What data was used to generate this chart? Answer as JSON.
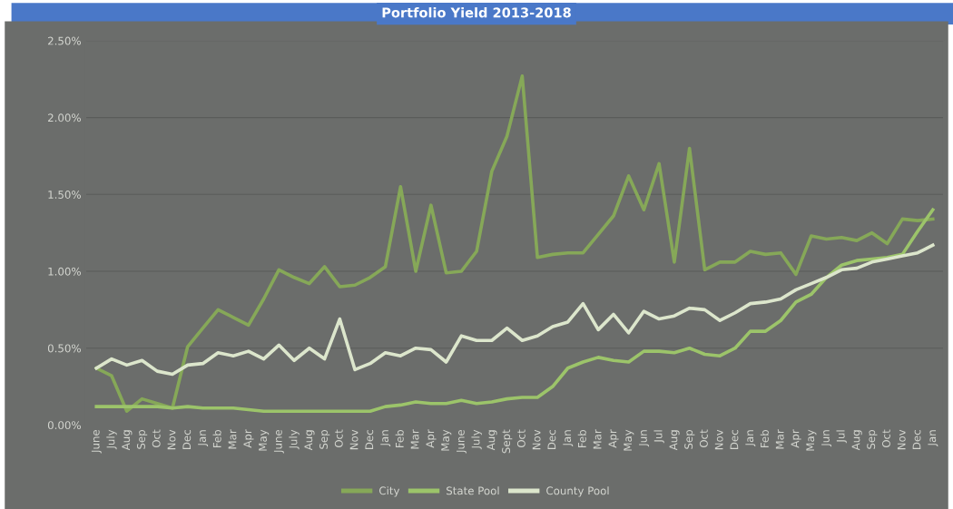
{
  "chart_data": {
    "type": "line",
    "title": "Portfolio Yield 2013-2018",
    "categories": [
      "June",
      "July",
      "Aug",
      "Sep",
      "Oct",
      "Nov",
      "Dec",
      "Jan",
      "Feb",
      "Mar",
      "Apr",
      "May",
      "June",
      "July",
      "Aug",
      "Sep",
      "Oct",
      "Nov",
      "Dec",
      "Jan",
      "Feb",
      "Mar",
      "Apr",
      "May",
      "June",
      "July",
      "Aug",
      "Sept",
      "Oct",
      "Nov",
      "Dec",
      "Jan",
      "Feb",
      "Mar",
      "Apr",
      "May",
      "Jun",
      "Jul",
      "Aug",
      "Sep",
      "Oct",
      "Nov",
      "Dec",
      "Jan",
      "Feb",
      "Mar",
      "Apr",
      "May",
      "Jun",
      "Jul",
      "Aug",
      "Sep",
      "Oct",
      "Nov",
      "Dec",
      "Jan"
    ],
    "series": [
      {
        "name": "City",
        "color": "#86a858",
        "values": [
          0.37,
          0.32,
          0.09,
          0.17,
          0.14,
          0.11,
          0.51,
          0.63,
          0.75,
          0.7,
          0.65,
          0.82,
          1.01,
          0.96,
          0.92,
          1.03,
          0.9,
          0.91,
          0.96,
          1.03,
          1.55,
          1.0,
          1.43,
          0.99,
          1.0,
          1.13,
          1.65,
          1.88,
          2.27,
          1.09,
          1.11,
          1.12,
          1.12,
          1.24,
          1.36,
          1.62,
          1.4,
          1.7,
          1.06,
          1.8,
          1.01,
          1.06,
          1.06,
          1.13,
          1.11,
          1.12,
          0.98,
          1.23,
          1.21,
          1.22,
          1.2,
          1.25,
          1.18,
          1.34,
          1.33,
          1.34
        ]
      },
      {
        "name": "State Pool",
        "color": "#9cc46a",
        "values": [
          0.12,
          0.12,
          0.12,
          0.12,
          0.12,
          0.11,
          0.12,
          0.11,
          0.11,
          0.11,
          0.1,
          0.09,
          0.09,
          0.09,
          0.09,
          0.09,
          0.09,
          0.09,
          0.09,
          0.12,
          0.13,
          0.15,
          0.14,
          0.14,
          0.16,
          0.14,
          0.15,
          0.17,
          0.18,
          0.18,
          0.25,
          0.37,
          0.41,
          0.44,
          0.42,
          0.41,
          0.48,
          0.48,
          0.47,
          0.5,
          0.46,
          0.45,
          0.5,
          0.61,
          0.61,
          0.68,
          0.8,
          0.85,
          0.96,
          1.04,
          1.07,
          1.08,
          1.09,
          1.11,
          1.26,
          1.4
        ]
      },
      {
        "name": "County Pool",
        "color": "#dce6cc",
        "values": [
          0.37,
          0.43,
          0.39,
          0.42,
          0.35,
          0.33,
          0.39,
          0.4,
          0.47,
          0.45,
          0.48,
          0.43,
          0.52,
          0.42,
          0.5,
          0.43,
          0.69,
          0.36,
          0.4,
          0.47,
          0.45,
          0.5,
          0.49,
          0.41,
          0.58,
          0.55,
          0.55,
          0.63,
          0.55,
          0.58,
          0.64,
          0.67,
          0.79,
          0.62,
          0.72,
          0.6,
          0.74,
          0.69,
          0.71,
          0.76,
          0.75,
          0.68,
          0.73,
          0.79,
          0.8,
          0.82,
          0.88,
          0.92,
          0.96,
          1.01,
          1.02,
          1.06,
          1.08,
          1.1,
          1.12,
          1.17
        ]
      }
    ],
    "ylim": [
      0,
      2.5
    ],
    "yticks": [
      {
        "value": 0,
        "label": "0.00%"
      },
      {
        "value": 0.5,
        "label": "0.50%"
      },
      {
        "value": 1.0,
        "label": "1.00%"
      },
      {
        "value": 1.5,
        "label": "1.50%"
      },
      {
        "value": 2.0,
        "label": "2.00%"
      },
      {
        "value": 2.5,
        "label": "2.50%"
      }
    ],
    "grid": "y",
    "legend": "bottom",
    "marker": "none",
    "line_style": "solid"
  }
}
